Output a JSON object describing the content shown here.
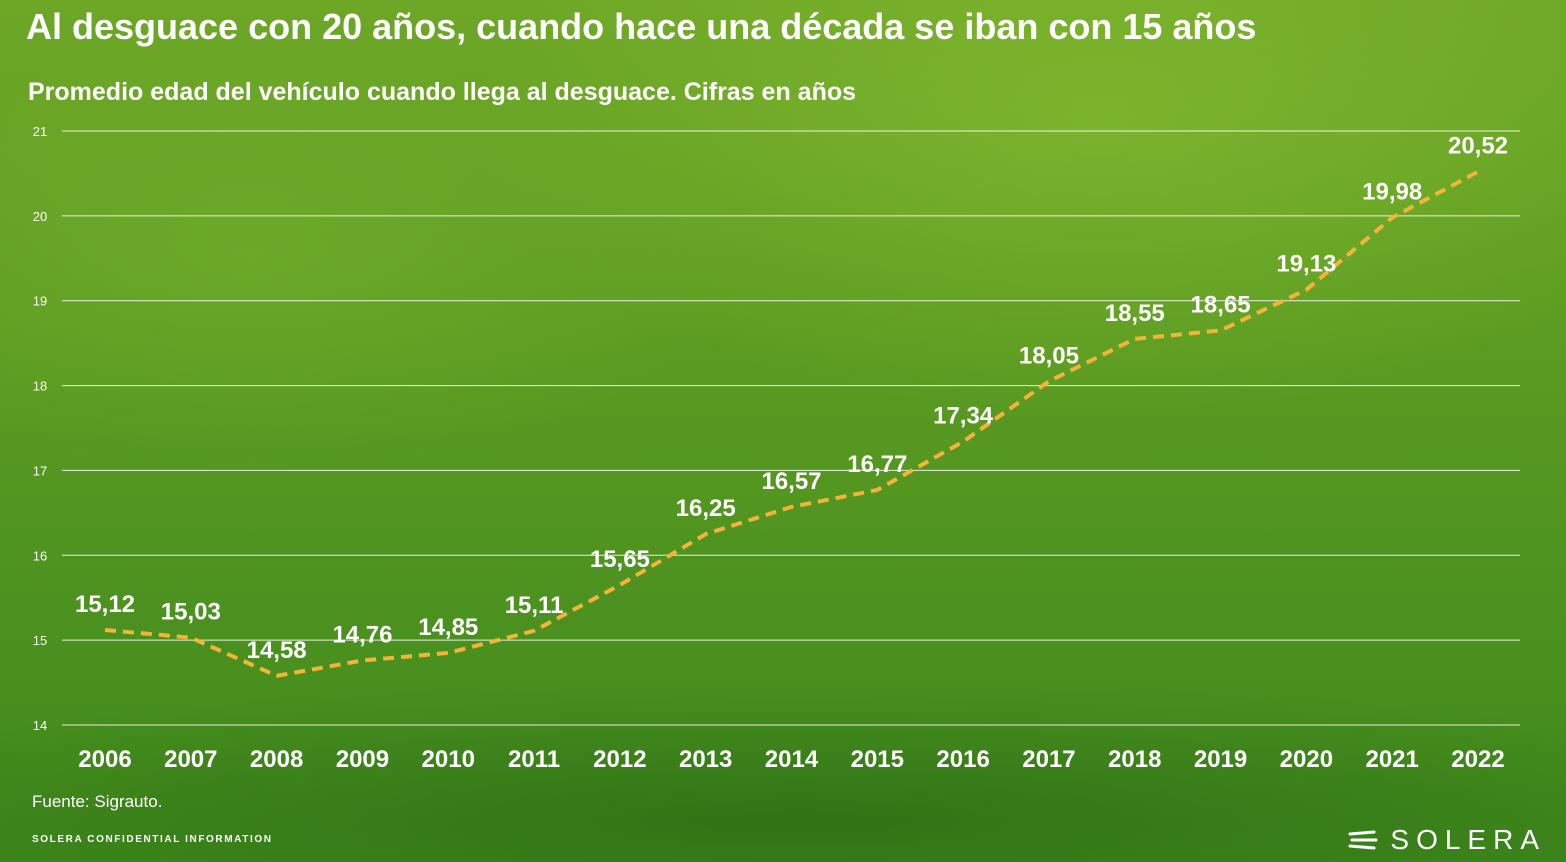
{
  "header": {
    "title": "Al desguace con 20 años, cuando hace una década se iban con 15 años",
    "subtitle": "Promedio edad del vehículo cuando llega al desguace. Cifras en años"
  },
  "footer": {
    "source": "Fuente: Sigrauto.",
    "confidential": "SOLERA CONFIDENTIAL INFORMATION",
    "brand": "SOLERA",
    "brand_icon": "solera-logo-icon"
  },
  "colors": {
    "line": "#f5b33a",
    "grid": "#ffffff",
    "text": "#ffffff"
  },
  "chart_data": {
    "type": "line",
    "title": "Al desguace con 20 años, cuando hace una década se iban con 15 años",
    "subtitle": "Promedio edad del vehículo cuando llega al desguace. Cifras en años",
    "x": [
      "2006",
      "2007",
      "2008",
      "2009",
      "2010",
      "2011",
      "2012",
      "2013",
      "2014",
      "2015",
      "2016",
      "2017",
      "2018",
      "2019",
      "2020",
      "2021",
      "2022"
    ],
    "values": [
      15.12,
      15.03,
      14.58,
      14.76,
      14.85,
      15.11,
      15.65,
      16.25,
      16.57,
      16.77,
      17.34,
      18.05,
      18.55,
      18.65,
      19.13,
      19.98,
      20.52
    ],
    "data_labels": [
      "15,12",
      "15,03",
      "14,58",
      "14,76",
      "14,85",
      "15,11",
      "15,65",
      "16,25",
      "16,57",
      "16,77",
      "17,34",
      "18,05",
      "18,55",
      "18,65",
      "19,13",
      "19,98",
      "20,52"
    ],
    "ylim": [
      14,
      21
    ],
    "yticks": [
      "14",
      "15",
      "16",
      "17",
      "18",
      "19",
      "20",
      "21"
    ],
    "line_style": "dashed",
    "grid": true,
    "xlabel": "",
    "ylabel": ""
  }
}
